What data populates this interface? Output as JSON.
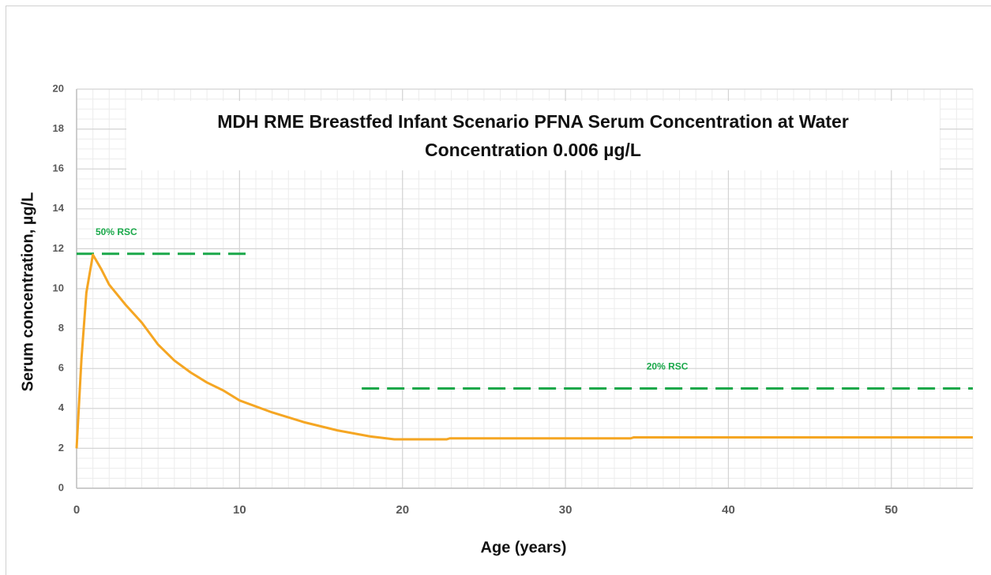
{
  "chart_data": {
    "type": "line",
    "title": "MDH RME Breastfed Infant Scenario PFNA Serum Concentration at Water Concentration 0.006  µg/L",
    "xlabel": "Age (years)",
    "ylabel": "Serum concentration, µg/L",
    "x": [
      0,
      0.3,
      0.6,
      1,
      1.5,
      2,
      3,
      4,
      5,
      6,
      7,
      8,
      9,
      10,
      12,
      14,
      16,
      18,
      19.5,
      22.7,
      22.9,
      34,
      34.2,
      55
    ],
    "series": [
      {
        "name": "Serum concentration",
        "color": "#f5a623",
        "values": [
          2,
          6.5,
          9.8,
          11.7,
          11.0,
          10.2,
          9.2,
          8.3,
          7.2,
          6.4,
          5.8,
          5.3,
          4.9,
          4.4,
          3.8,
          3.3,
          2.9,
          2.6,
          2.45,
          2.45,
          2.5,
          2.5,
          2.55,
          2.55
        ]
      }
    ],
    "reference_lines": [
      {
        "label": "50% RSC",
        "value": 11.75,
        "xrange": [
          0,
          10.5
        ],
        "color": "#1aa84a"
      },
      {
        "label": "20% RSC",
        "value": 5.0,
        "xrange": [
          17.5,
          55
        ],
        "color": "#1aa84a"
      }
    ],
    "xlim": [
      0,
      55
    ],
    "ylim": [
      0,
      20
    ],
    "xticks": [
      0,
      10,
      20,
      30,
      40,
      50
    ],
    "yticks": [
      0,
      2,
      4,
      6,
      8,
      10,
      12,
      14,
      16,
      18,
      20
    ],
    "grid": true,
    "minor_grid": {
      "x": 1,
      "y": 0.5
    }
  }
}
